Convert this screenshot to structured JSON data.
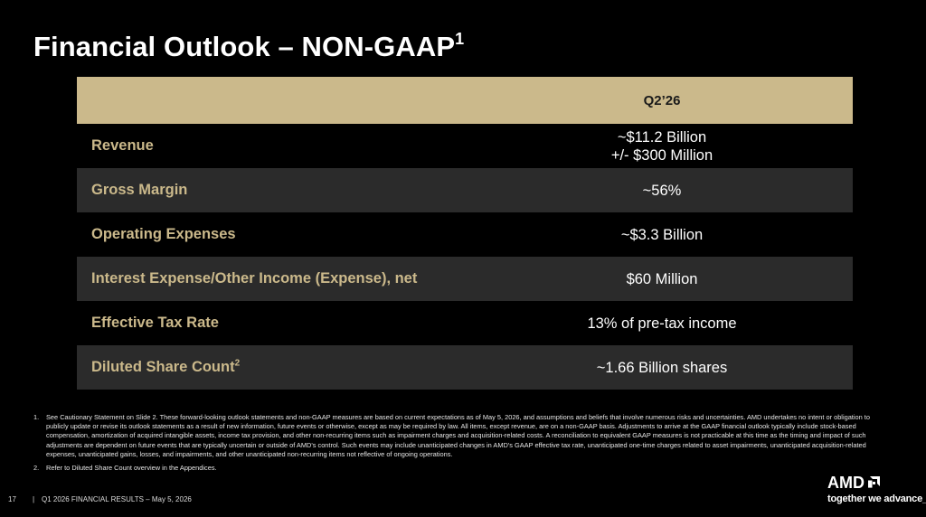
{
  "slide": {
    "title": "Financial Outlook – NON-GAAP",
    "title_sup": "1",
    "column_header": "Q2’26",
    "rows": [
      {
        "metric": "Revenue",
        "metric_sup": "",
        "value_lines": [
          "~$11.2 Billion",
          "+/- $300 Million"
        ]
      },
      {
        "metric": "Gross Margin",
        "metric_sup": "",
        "value_lines": [
          "~56%"
        ]
      },
      {
        "metric": "Operating Expenses",
        "metric_sup": "",
        "value_lines": [
          "~$3.3 Billion"
        ]
      },
      {
        "metric": "Interest Expense/Other Income (Expense), net",
        "metric_sup": "",
        "value_lines": [
          "$60 Million"
        ]
      },
      {
        "metric": "Effective Tax Rate",
        "metric_sup": "",
        "value_lines": [
          "13% of pre-tax income"
        ]
      },
      {
        "metric": "Diluted Share Count",
        "metric_sup": "2",
        "value_lines": [
          "~1.66 Billion shares"
        ]
      }
    ],
    "footnotes": [
      {
        "num": "1.",
        "text": "See Cautionary Statement on Slide 2. These forward-looking outlook statements and non-GAAP measures are based on current expectations as of May 5, 2026, and assumptions and beliefs that involve numerous risks and uncertainties. AMD undertakes no intent or obligation to publicly update or revise its outlook statements as a result of new information, future events or otherwise, except as may be required by law. All items, except revenue, are on a non-GAAP basis. Adjustments to arrive at the GAAP financial outlook typically include stock-based compensation, amortization of acquired intangible assets, income tax provision, and other non-recurring items such as impairment charges and acquisition-related costs. A reconciliation to equivalent GAAP measures is not practicable at this time as the timing and impact of such adjustments are dependent on future events that are typically uncertain or outside of AMD's control. Such events may include unanticipated changes in AMD's GAAP effective tax rate, unanticipated one-time charges related to asset impairments, unanticipated acquisition-related expenses, unanticipated gains, losses, and impairments, and other unanticipated non-recurring items not reflective of ongoing operations."
      },
      {
        "num": "2.",
        "text": "Refer to Diluted Share Count overview in the Appendices."
      }
    ],
    "page_number": "17",
    "footer_separator": "|",
    "footer_text": "Q1 2026 FINANCIAL RESULTS – May 5, 2026",
    "brand": {
      "logo_text": "AMD",
      "logo_icon": "amd-arrow-icon",
      "tagline": "together we advance_"
    }
  },
  "colors": {
    "background": "#000000",
    "accent_gold": "#cbb98b",
    "row_shade": "#2b2b2b",
    "text": "#ffffff"
  }
}
